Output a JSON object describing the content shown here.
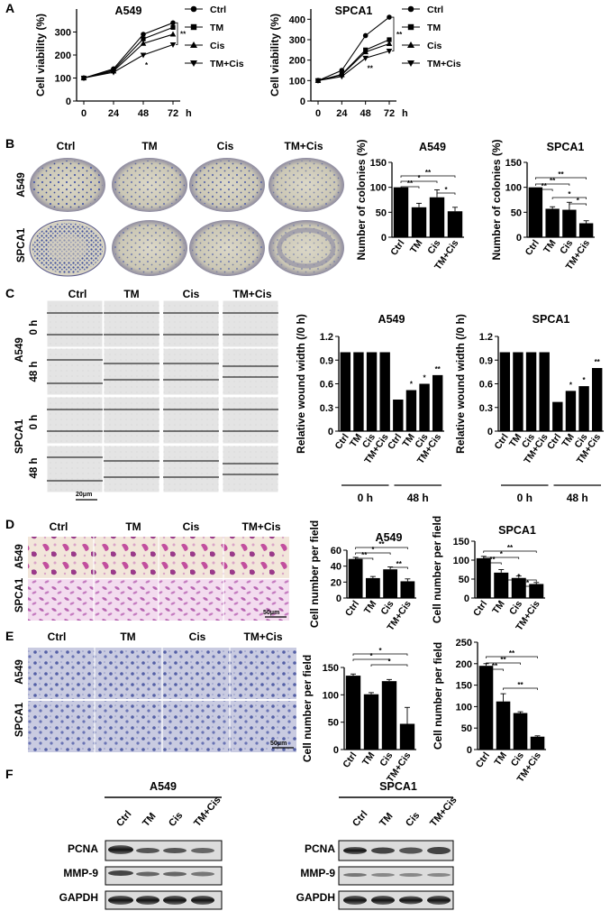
{
  "panels": {
    "a": "A",
    "b": "B",
    "c": "C",
    "d": "D",
    "e": "E",
    "f": "F"
  },
  "groups": [
    "Ctrl",
    "TM",
    "Cis",
    "TM+Cis"
  ],
  "cell_lines": [
    "A549",
    "SPCA1"
  ],
  "colors": {
    "bar": "#000000",
    "crystal_violet": "#4a5aa8",
    "eosin": "#b04a9c",
    "plate": "#d8d4c4"
  },
  "panel_a": {
    "legend": [
      {
        "label": "Ctrl",
        "marker": "circle"
      },
      {
        "label": "TM",
        "marker": "square"
      },
      {
        "label": "Cis",
        "marker": "triangle-up"
      },
      {
        "label": "TM+Cis",
        "marker": "triangle-down"
      }
    ],
    "ylabel": "Cell viability (%)",
    "x_ticks": [
      "0",
      "24",
      "48",
      "72"
    ],
    "x_unit": "h"
  },
  "panel_b": {
    "ylabel": "Number of colonies (%)"
  },
  "panel_c": {
    "ylabel": "Relative wound width (/0 h)",
    "time_labels": [
      "0 h",
      "48 h"
    ],
    "scale_bar": "20μm"
  },
  "panel_d": {
    "ylabel": "Cell number per field",
    "scale_bar": "50μm"
  },
  "panel_e": {
    "ylabel": "Cell number per field",
    "scale_bar": "50μm"
  },
  "panel_f": {
    "proteins": [
      "PCNA",
      "MMP-9",
      "GAPDH"
    ]
  },
  "chart_data": [
    {
      "id": "a-A549",
      "type": "line",
      "title": "A549",
      "xlabel": "h",
      "ylabel": "Cell viability (%)",
      "x": [
        0,
        24,
        48,
        72
      ],
      "ylim": [
        0,
        400
      ],
      "yticks": [
        0,
        100,
        200,
        300
      ],
      "series": [
        {
          "name": "Ctrl",
          "values": [
            100,
            140,
            290,
            340
          ]
        },
        {
          "name": "TM",
          "values": [
            100,
            135,
            270,
            320
          ]
        },
        {
          "name": "Cis",
          "values": [
            100,
            130,
            250,
            290
          ]
        },
        {
          "name": "TM+Cis",
          "values": [
            100,
            125,
            200,
            245
          ]
        }
      ],
      "annotations": [
        "*",
        "**"
      ]
    },
    {
      "id": "a-SPCA1",
      "type": "line",
      "title": "SPCA1",
      "xlabel": "h",
      "ylabel": "Cell viability (%)",
      "x": [
        0,
        24,
        48,
        72
      ],
      "ylim": [
        0,
        450
      ],
      "yticks": [
        0,
        100,
        200,
        300,
        400
      ],
      "series": [
        {
          "name": "Ctrl",
          "values": [
            100,
            150,
            320,
            410
          ]
        },
        {
          "name": "TM",
          "values": [
            100,
            130,
            250,
            300
          ]
        },
        {
          "name": "Cis",
          "values": [
            100,
            128,
            240,
            280
          ]
        },
        {
          "name": "TM+Cis",
          "values": [
            100,
            120,
            210,
            245
          ]
        }
      ],
      "annotations": [
        "**",
        "**"
      ]
    },
    {
      "id": "b-A549",
      "type": "bar",
      "title": "A549",
      "ylabel": "Number of colonies (%)",
      "categories": [
        "Ctrl",
        "TM",
        "Cis",
        "TM+Cis"
      ],
      "values": [
        100,
        60,
        80,
        52
      ],
      "errors": [
        0,
        8,
        15,
        8
      ],
      "ylim": [
        0,
        150
      ],
      "yticks": [
        0,
        50,
        100,
        150
      ]
    },
    {
      "id": "b-SPCA1",
      "type": "bar",
      "title": "SPCA1",
      "ylabel": "Number of colonies (%)",
      "categories": [
        "Ctrl",
        "TM",
        "Cis",
        "TM+Cis"
      ],
      "values": [
        100,
        57,
        55,
        28
      ],
      "errors": [
        0,
        4,
        15,
        5
      ],
      "ylim": [
        0,
        150
      ],
      "yticks": [
        0,
        50,
        100,
        150
      ]
    },
    {
      "id": "c-A549",
      "type": "bar",
      "title": "A549",
      "ylabel": "Relative wound width (/0 h)",
      "categories": [
        "Ctrl",
        "TM",
        "Cis",
        "TM+Cis",
        "Ctrl",
        "TM",
        "Cis",
        "TM+Cis"
      ],
      "groups": [
        "0 h",
        "48 h"
      ],
      "values": [
        1,
        1,
        1,
        1,
        0.4,
        0.52,
        0.6,
        0.71
      ],
      "ylim": [
        0,
        1.2
      ],
      "yticks": [
        0,
        0.3,
        0.6,
        0.9,
        1.2
      ],
      "annotations": [
        "*",
        "*",
        "**"
      ]
    },
    {
      "id": "c-SPCA1",
      "type": "bar",
      "title": "SPCA1",
      "ylabel": "Relative wound width (/0 h)",
      "categories": [
        "Ctrl",
        "TM",
        "Cis",
        "TM+Cis",
        "Ctrl",
        "TM",
        "Cis",
        "TM+Cis"
      ],
      "groups": [
        "0 h",
        "48 h"
      ],
      "values": [
        1,
        1,
        1,
        1,
        0.37,
        0.51,
        0.57,
        0.8
      ],
      "ylim": [
        0,
        1.2
      ],
      "yticks": [
        0,
        0.3,
        0.6,
        0.9,
        1.2
      ],
      "annotations": [
        "*",
        "*",
        "**"
      ]
    },
    {
      "id": "d-A549",
      "type": "bar",
      "title": "A549",
      "ylabel": "Cell number per field",
      "categories": [
        "Ctrl",
        "TM",
        "Cis",
        "TM+Cis"
      ],
      "values": [
        49,
        25,
        36,
        21
      ],
      "errors": [
        2,
        2,
        3,
        3
      ],
      "ylim": [
        0,
        60
      ],
      "yticks": [
        0,
        20,
        40,
        60
      ]
    },
    {
      "id": "d-SPCA1",
      "type": "bar",
      "title": "SPCA1",
      "ylabel": "Cell number per field",
      "categories": [
        "Ctrl",
        "TM",
        "Cis",
        "TM+Cis"
      ],
      "values": [
        105,
        67,
        53,
        37
      ],
      "errors": [
        5,
        8,
        5,
        4
      ],
      "ylim": [
        0,
        150
      ],
      "yticks": [
        0,
        50,
        100,
        150
      ]
    },
    {
      "id": "e-A549",
      "type": "bar",
      "title": "",
      "ylabel": "Cell number per field",
      "categories": [
        "Ctrl",
        "TM",
        "Cis",
        "TM+Cis"
      ],
      "values": [
        135,
        101,
        125,
        47
      ],
      "errors": [
        3,
        3,
        3,
        30
      ],
      "ylim": [
        0,
        150
      ],
      "yticks": [
        0,
        50,
        100,
        150
      ]
    },
    {
      "id": "e-SPCA1",
      "type": "bar",
      "title": "",
      "ylabel": "Cell number per field",
      "categories": [
        "Ctrl",
        "TM",
        "Cis",
        "TM+Cis"
      ],
      "values": [
        195,
        112,
        85,
        30
      ],
      "errors": [
        5,
        18,
        3,
        2
      ],
      "ylim": [
        0,
        250
      ],
      "yticks": [
        0,
        50,
        100,
        150,
        200,
        250
      ]
    }
  ]
}
